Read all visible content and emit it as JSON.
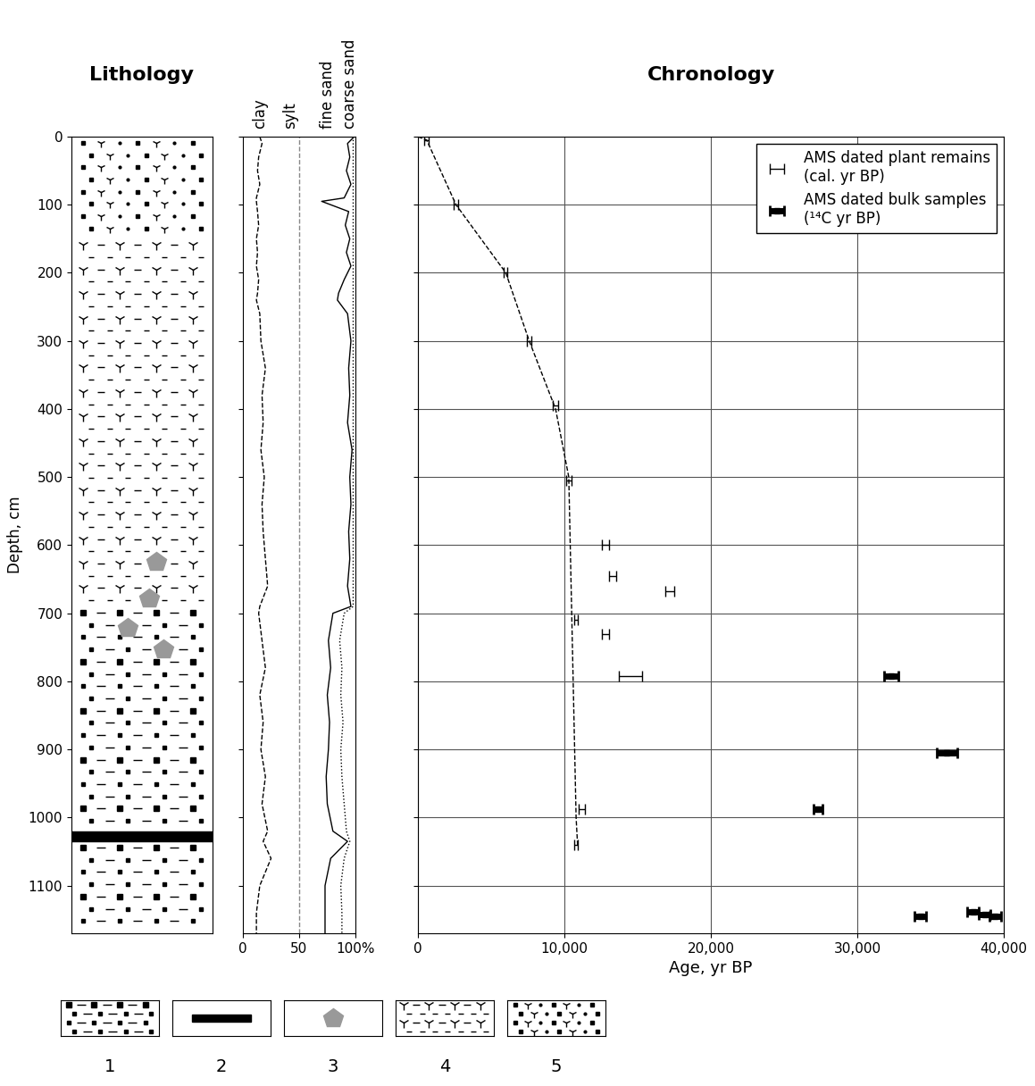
{
  "chart_data": [
    {
      "type": "lithology",
      "title": "Lithology",
      "ylabel": "Depth, cm",
      "ylim": [
        1170,
        0
      ],
      "yticks": [
        0,
        100,
        200,
        300,
        400,
        500,
        600,
        700,
        800,
        900,
        1000,
        1100
      ],
      "tick_labels": "y",
      "layers": [
        {
          "top": 0,
          "bottom": 150,
          "pattern": 5
        },
        {
          "top": 150,
          "bottom": 690,
          "pattern": 4
        },
        {
          "top": 690,
          "bottom": 1020,
          "pattern": 1
        },
        {
          "top": 1020,
          "bottom": 1035,
          "pattern": 2
        },
        {
          "top": 1035,
          "bottom": 1170,
          "pattern": 1
        }
      ],
      "pebbles": {
        "pattern": 3,
        "depths": [
          625,
          678,
          722,
          753
        ]
      },
      "legend_items": [
        "1",
        "2",
        "3",
        "4",
        "5"
      ]
    },
    {
      "type": "line",
      "column_labels": [
        "clay",
        "sylt",
        "fine sand",
        "coarse sand"
      ],
      "xlim": [
        0,
        100
      ],
      "xticks": [
        0,
        50,
        {
          "value": 100,
          "label": "100%"
        }
      ],
      "ylim": [
        1170,
        0
      ],
      "yticks": [
        0,
        100,
        200,
        300,
        400,
        500,
        600,
        700,
        800,
        900,
        1000,
        1100
      ],
      "tick_labels": "x",
      "reference_x": 50,
      "depth": [
        0,
        10,
        30,
        50,
        70,
        90,
        95,
        110,
        130,
        150,
        170,
        190,
        210,
        230,
        240,
        260,
        300,
        340,
        380,
        420,
        460,
        500,
        540,
        580,
        620,
        660,
        690,
        700,
        740,
        780,
        820,
        860,
        900,
        940,
        980,
        1020,
        1035,
        1060,
        1100,
        1140,
        1170
      ],
      "series": [
        {
          "name": "clay",
          "line_style": "dashed",
          "color": "#000000",
          "values": [
            15,
            17,
            14,
            13,
            15,
            12,
            12,
            13,
            14,
            12,
            13,
            12,
            14,
            13,
            12,
            15,
            16,
            20,
            17,
            18,
            16,
            19,
            17,
            18,
            20,
            22,
            15,
            14,
            17,
            20,
            15,
            18,
            16,
            20,
            17,
            22,
            18,
            25,
            15,
            12,
            12
          ]
        },
        {
          "name": "fine sand",
          "line_style": "solid",
          "color": "#000000",
          "values": [
            99,
            93,
            95,
            92,
            96,
            90,
            70,
            94,
            91,
            95,
            92,
            96,
            90,
            85,
            84,
            93,
            96,
            94,
            95,
            93,
            97,
            95,
            96,
            94,
            95,
            93,
            96,
            80,
            76,
            78,
            75,
            77,
            76,
            74,
            75,
            80,
            93,
            78,
            73,
            73,
            73
          ]
        },
        {
          "name": "coarse sand",
          "line_style": "dotted",
          "color": "#000000",
          "values": [
            98,
            98,
            98,
            98,
            98,
            98,
            98,
            98,
            98,
            98,
            98,
            98,
            98,
            98,
            98,
            98,
            98,
            98,
            98,
            98,
            98,
            98,
            98,
            98,
            98,
            98,
            98,
            90,
            86,
            88,
            87,
            89,
            87,
            88,
            90,
            92,
            95,
            90,
            87,
            88,
            88
          ]
        }
      ]
    },
    {
      "type": "scatter",
      "title": "Chronology",
      "xlabel": "Age, yr BP",
      "xlim": [
        0,
        40000
      ],
      "xticks": [
        0,
        {
          "value": 10000,
          "label": "10,000"
        },
        {
          "value": 20000,
          "label": "20,000"
        },
        {
          "value": 30000,
          "label": "30,000"
        },
        {
          "value": 40000,
          "label": "40,000"
        }
      ],
      "ylim": [
        1170,
        0
      ],
      "yticks": [
        0,
        100,
        200,
        300,
        400,
        500,
        600,
        700,
        800,
        900,
        1000,
        1100
      ],
      "tick_labels": "x",
      "grid": true,
      "legend": "upper right",
      "series": [
        {
          "name": "AMS dated plant remains\n(cal. yr BP)",
          "marker": "errorbar",
          "color": "#000000",
          "age": [
            600,
            2600,
            6000,
            7600,
            9400,
            10300,
            12800,
            13300,
            17200,
            10800,
            12800,
            14500,
            11200,
            10800
          ],
          "error": [
            150,
            150,
            120,
            150,
            200,
            200,
            250,
            250,
            300,
            120,
            250,
            800,
            200,
            100
          ],
          "depth": [
            5,
            100,
            200,
            300,
            395,
            505,
            600,
            645,
            668,
            710,
            730,
            792,
            988,
            1040
          ]
        },
        {
          "name": "AMS dated bulk samples\n(¹⁴C yr BP)",
          "marker": "square",
          "color": "#000000",
          "age": [
            32300,
            36100,
            27300,
            34300,
            37900,
            38700,
            39400
          ],
          "error": [
            500,
            700,
            300,
            400,
            400,
            400,
            400
          ],
          "depth": [
            792,
            905,
            988,
            1145,
            1138,
            1142,
            1145
          ]
        }
      ],
      "age_model": {
        "line_style": "dashed",
        "color": "#000000",
        "age": [
          0,
          600,
          2600,
          6000,
          7600,
          9400,
          10300,
          10600,
          10800,
          10900
        ],
        "depth": [
          0,
          5,
          100,
          200,
          300,
          400,
          500,
          800,
          1000,
          1040
        ]
      }
    }
  ]
}
